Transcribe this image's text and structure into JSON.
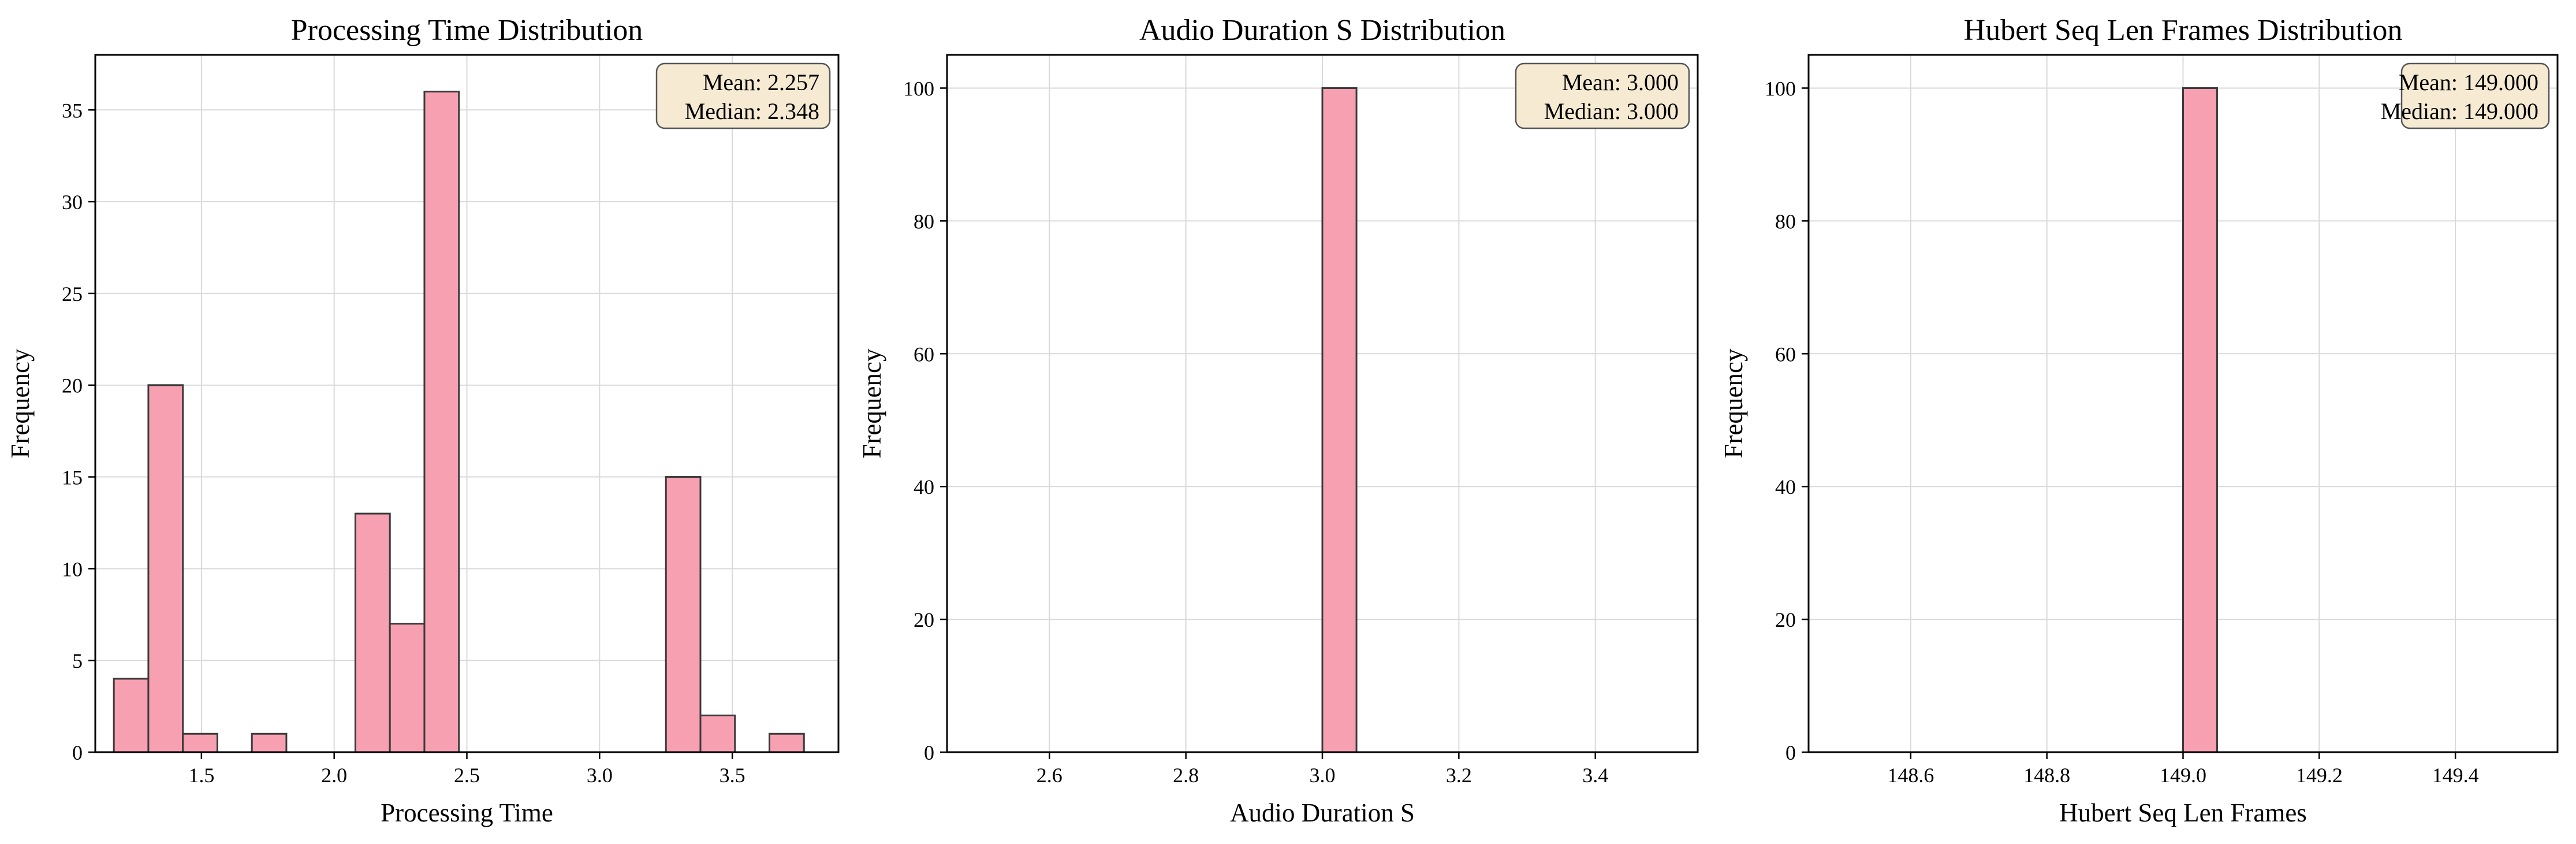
{
  "style": {
    "bar_color": "#f7a0b1",
    "bar_edge": "#3a3a3a",
    "stats_box_color": "#f6ead2"
  },
  "chart_data": [
    {
      "type": "bar",
      "title": "Processing Time Distribution",
      "xlabel": "Processing Time",
      "ylabel": "Frequency",
      "xlim": [
        1.1,
        3.9
      ],
      "ylim": [
        0,
        38
      ],
      "xticks": [
        1.5,
        2.0,
        2.5,
        3.0,
        3.5
      ],
      "xtick_labels": [
        "1.5",
        "2.0",
        "2.5",
        "3.0",
        "3.5"
      ],
      "yticks": [
        0,
        5,
        10,
        15,
        20,
        25,
        30,
        35
      ],
      "ytick_labels": [
        "0",
        "5",
        "10",
        "15",
        "20",
        "25",
        "30",
        "35"
      ],
      "grid": true,
      "bins": [
        [
          1.17,
          1.3,
          4
        ],
        [
          1.3,
          1.43,
          20
        ],
        [
          1.43,
          1.56,
          1
        ],
        [
          1.56,
          1.69,
          0
        ],
        [
          1.69,
          1.82,
          1
        ],
        [
          1.82,
          1.95,
          0
        ],
        [
          1.95,
          2.08,
          0
        ],
        [
          2.08,
          2.21,
          13
        ],
        [
          2.21,
          2.34,
          7
        ],
        [
          2.34,
          2.47,
          36
        ],
        [
          2.47,
          2.6,
          0
        ],
        [
          2.6,
          2.73,
          0
        ],
        [
          2.73,
          2.86,
          0
        ],
        [
          2.86,
          2.99,
          0
        ],
        [
          2.99,
          3.12,
          0
        ],
        [
          3.12,
          3.25,
          0
        ],
        [
          3.25,
          3.38,
          15
        ],
        [
          3.38,
          3.51,
          2
        ],
        [
          3.51,
          3.64,
          0
        ],
        [
          3.64,
          3.77,
          1
        ]
      ],
      "stats": {
        "mean": "Mean: 2.257",
        "median": "Median: 2.348"
      },
      "stats_position": "top-right"
    },
    {
      "type": "bar",
      "title": "Audio Duration S Distribution",
      "xlabel": "Audio Duration S",
      "ylabel": "Frequency",
      "xlim": [
        2.45,
        3.55
      ],
      "ylim": [
        0,
        105
      ],
      "xticks": [
        2.6,
        2.8,
        3.0,
        3.2,
        3.4
      ],
      "xtick_labels": [
        "2.6",
        "2.8",
        "3.0",
        "3.2",
        "3.4"
      ],
      "yticks": [
        0,
        20,
        40,
        60,
        80,
        100
      ],
      "ytick_labels": [
        "0",
        "20",
        "40",
        "60",
        "80",
        "100"
      ],
      "grid": true,
      "bins": [
        [
          2.5,
          2.55,
          0
        ],
        [
          2.55,
          2.6,
          0
        ],
        [
          2.6,
          2.65,
          0
        ],
        [
          2.65,
          2.7,
          0
        ],
        [
          2.7,
          2.75,
          0
        ],
        [
          2.75,
          2.8,
          0
        ],
        [
          2.8,
          2.85,
          0
        ],
        [
          2.85,
          2.9,
          0
        ],
        [
          2.9,
          2.95,
          0
        ],
        [
          2.95,
          3.0,
          0
        ],
        [
          3.0,
          3.05,
          100
        ],
        [
          3.05,
          3.1,
          0
        ],
        [
          3.1,
          3.15,
          0
        ],
        [
          3.15,
          3.2,
          0
        ],
        [
          3.2,
          3.25,
          0
        ],
        [
          3.25,
          3.3,
          0
        ],
        [
          3.3,
          3.35,
          0
        ],
        [
          3.35,
          3.4,
          0
        ],
        [
          3.4,
          3.45,
          0
        ],
        [
          3.45,
          3.5,
          0
        ]
      ],
      "stats": {
        "mean": "Mean: 3.000",
        "median": "Median: 3.000"
      },
      "stats_position": "top-right"
    },
    {
      "type": "bar",
      "title": "Hubert Seq Len Frames Distribution",
      "xlabel": "Hubert Seq Len Frames",
      "ylabel": "Frequency",
      "xlim": [
        148.45,
        149.55
      ],
      "ylim": [
        0,
        105
      ],
      "xticks": [
        148.6,
        148.8,
        149.0,
        149.2,
        149.4
      ],
      "xtick_labels": [
        "148.6",
        "148.8",
        "149.0",
        "149.2",
        "149.4"
      ],
      "yticks": [
        0,
        20,
        40,
        60,
        80,
        100
      ],
      "ytick_labels": [
        "0",
        "20",
        "40",
        "60",
        "80",
        "100"
      ],
      "grid": true,
      "bins": [
        [
          148.5,
          148.55,
          0
        ],
        [
          148.55,
          148.6,
          0
        ],
        [
          148.6,
          148.65,
          0
        ],
        [
          148.65,
          148.7,
          0
        ],
        [
          148.7,
          148.75,
          0
        ],
        [
          148.75,
          148.8,
          0
        ],
        [
          148.8,
          148.85,
          0
        ],
        [
          148.85,
          148.9,
          0
        ],
        [
          148.9,
          148.95,
          0
        ],
        [
          148.95,
          149.0,
          0
        ],
        [
          149.0,
          149.05,
          100
        ],
        [
          149.05,
          149.1,
          0
        ],
        [
          149.1,
          149.15,
          0
        ],
        [
          149.15,
          149.2,
          0
        ],
        [
          149.2,
          149.25,
          0
        ],
        [
          149.25,
          149.3,
          0
        ],
        [
          149.3,
          149.35,
          0
        ],
        [
          149.35,
          149.4,
          0
        ],
        [
          149.4,
          149.45,
          0
        ],
        [
          149.45,
          149.5,
          0
        ]
      ],
      "stats": {
        "mean": "Mean: 149.000",
        "median": "Median: 149.000"
      },
      "stats_position": "top-right"
    }
  ]
}
